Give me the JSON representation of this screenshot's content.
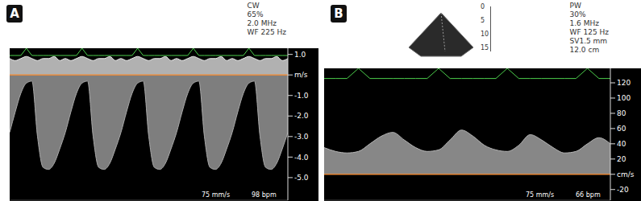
{
  "chart_data": [
    {
      "type": "area",
      "title": "A",
      "annotations": [
        "CW",
        "65%",
        "2.0 MHz",
        "WF 225 Hz"
      ],
      "footer": [
        "75 mm/s",
        "98 bpm"
      ],
      "tick_labels": "y",
      "grid": false,
      "x": [
        0,
        2,
        4,
        6,
        8,
        10,
        12,
        14,
        16,
        18,
        20,
        22,
        24,
        26,
        28,
        30,
        32,
        34,
        36,
        38,
        40,
        42,
        44,
        46,
        48,
        50,
        52,
        54,
        56,
        58,
        60,
        62,
        64,
        66,
        68,
        70,
        72,
        74,
        76,
        78,
        80,
        82,
        84,
        86,
        88,
        90,
        92,
        94,
        96,
        98,
        100
      ],
      "xlim": [
        0,
        100
      ],
      "ylim": [
        -6.1,
        1.3
      ],
      "yticks": [
        {
          "value": 1,
          "label": "1.0"
        },
        {
          "value": 0,
          "label": "m/s"
        },
        {
          "value": -1,
          "label": "-1.0"
        },
        {
          "value": -2,
          "label": "-2.0"
        },
        {
          "value": -3,
          "label": "-3.0"
        },
        {
          "value": -4,
          "label": "-4.0"
        },
        {
          "value": -5,
          "label": "-5.0"
        }
      ],
      "y2lim": [
        -20,
        1
      ],
      "series": [
        {
          "type": "area",
          "color": "#a8a8a8",
          "values": [
            -2.8,
            -1.8,
            -0.9,
            -0.4,
            -0.3,
            -3.0,
            -4.5,
            -4.6,
            -4.3,
            -3.6,
            -2.8,
            -1.8,
            -0.9,
            -0.4,
            -0.3,
            -3.0,
            -4.5,
            -4.6,
            -4.3,
            -3.6,
            -2.8,
            -1.8,
            -0.9,
            -0.4,
            -0.3,
            -3.0,
            -4.5,
            -4.6,
            -4.3,
            -3.6,
            -2.8,
            -1.8,
            -0.9,
            -0.4,
            -0.3,
            -3.0,
            -4.5,
            -4.6,
            -4.3,
            -3.6,
            -2.8,
            -1.8,
            -0.9,
            -0.4,
            -0.3,
            -3.0,
            -4.5,
            -4.6,
            -4.3,
            -3.6,
            -2.8
          ]
        },
        {
          "type": "area",
          "color": "#ececec",
          "values": [
            0.8,
            0.7,
            0.8,
            0.9,
            0.8,
            0.7,
            0.8,
            0.8,
            0.9,
            0.7,
            0.8,
            0.7,
            0.8,
            0.9,
            0.8,
            0.7,
            0.8,
            0.8,
            0.9,
            0.7,
            0.8,
            0.7,
            0.8,
            0.9,
            0.8,
            0.7,
            0.8,
            0.8,
            0.9,
            0.7,
            0.8,
            0.7,
            0.8,
            0.9,
            0.8,
            0.7,
            0.8,
            0.8,
            0.9,
            0.7,
            0.8,
            0.7,
            0.8,
            0.9,
            0.8,
            0.7,
            0.8,
            0.8,
            0.9,
            0.7,
            0.8
          ]
        },
        {
          "type": "line",
          "axis": "y2",
          "color": "#4ccf4c",
          "values": [
            0,
            0,
            0,
            1,
            0,
            0,
            0,
            0,
            0,
            0,
            0,
            0,
            0,
            1,
            0,
            0,
            0,
            0,
            0,
            0,
            0,
            0,
            0,
            1,
            0,
            0,
            0,
            0,
            0,
            0,
            0,
            0,
            0,
            1,
            0,
            0,
            0,
            0,
            0,
            0,
            0,
            0,
            0,
            1,
            0,
            0,
            0,
            0,
            0,
            0,
            0
          ]
        }
      ]
    },
    {
      "type": "area",
      "title": "B",
      "annotations": [
        "PW",
        "30%",
        "1.6 MHz",
        "WF 125 Hz",
        "SV1.5 mm",
        "12.0 cm"
      ],
      "footer": [
        "75 mm/s",
        "66 bpm"
      ],
      "depth_scale": [
        0,
        5,
        10,
        15
      ],
      "tick_labels": "y",
      "grid": false,
      "x": [
        0,
        4,
        8,
        12,
        16,
        20,
        24,
        28,
        32,
        36,
        40,
        44,
        48,
        52,
        56,
        60,
        64,
        68,
        72,
        76,
        80,
        84,
        88,
        92,
        96,
        100
      ],
      "xlim": [
        0,
        100
      ],
      "ylim": [
        -34,
        139
      ],
      "yticks": [
        120,
        100,
        80,
        60,
        40,
        20,
        {
          "value": 0,
          "label": "cm/s"
        },
        -20
      ],
      "y2lim": [
        -12,
        1
      ],
      "series": [
        {
          "type": "area",
          "color": "#b4b4b4",
          "values": [
            35,
            30,
            28,
            30,
            40,
            50,
            55,
            45,
            35,
            30,
            32,
            45,
            58,
            50,
            38,
            32,
            30,
            38,
            52,
            45,
            35,
            28,
            30,
            40,
            48,
            40
          ]
        },
        {
          "type": "line",
          "axis": "y2",
          "color": "#4ccf4c",
          "values": [
            0,
            0,
            0,
            1,
            0,
            0,
            0,
            0,
            0,
            0,
            1,
            0,
            0,
            0,
            0,
            0,
            1,
            0,
            0,
            0,
            0,
            0,
            0,
            1,
            0,
            0
          ]
        }
      ]
    }
  ]
}
